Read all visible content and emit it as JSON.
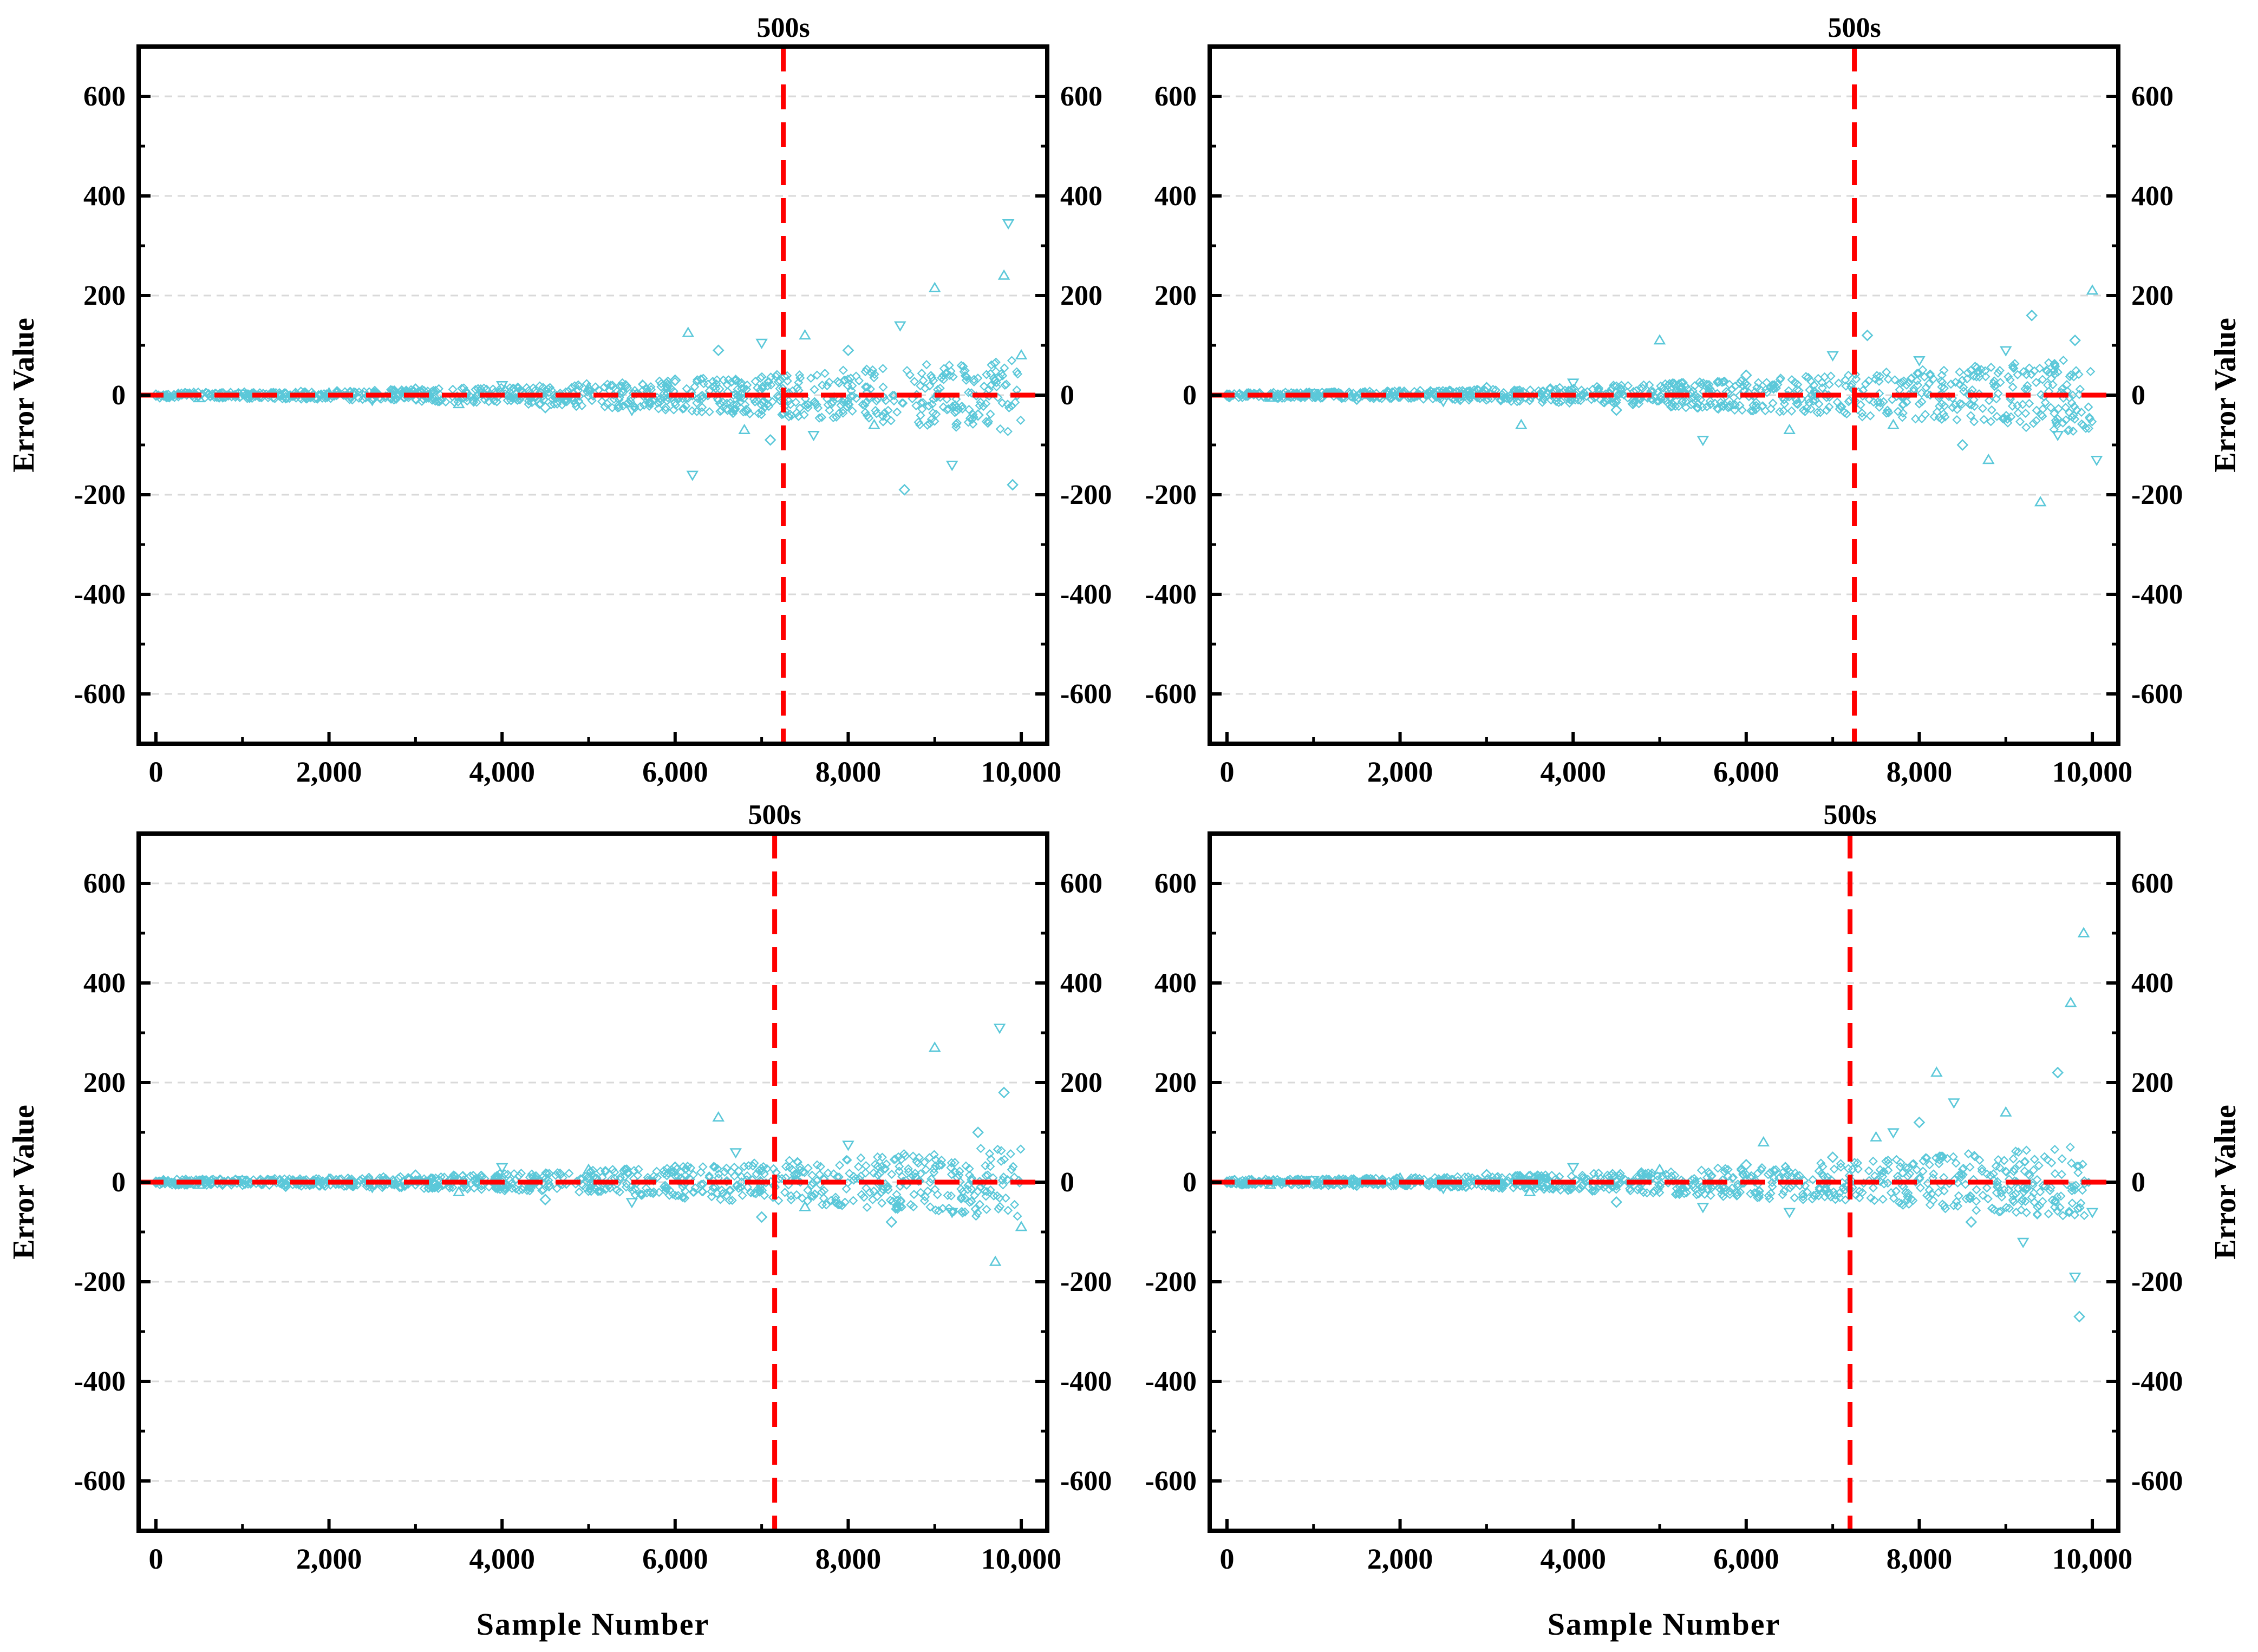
{
  "figure": {
    "xlabel": "Sample Number",
    "ylabel": "Error Value",
    "colors": {
      "points": "#5bc8d9",
      "reference": "#ff0000",
      "grid": "#d9d9d9",
      "axes": "#000000"
    }
  },
  "chart_data": [
    {
      "type": "scatter",
      "panel": "top-left",
      "marker": "500s",
      "marker_x": 7250,
      "xlim": [
        -200,
        10300
      ],
      "ylim": [
        -700,
        700
      ],
      "xticks": [
        0,
        2000,
        4000,
        6000,
        8000,
        10000
      ],
      "xticklabels": [
        "0",
        "2,000",
        "4,000",
        "6,000",
        "8,000",
        "10,000"
      ],
      "yticks": [
        -600,
        -400,
        -200,
        0,
        200,
        400,
        600
      ],
      "yticklabels": [
        "-600",
        "-400",
        "-200",
        "0",
        "200",
        "400",
        "600"
      ],
      "right_yticklabels": [
        "-600",
        "-400",
        "-200",
        "0",
        "200",
        "400",
        "600"
      ],
      "xlabel": "",
      "ylabel_left": "Error Value",
      "ylabel_right": "",
      "grid": true,
      "reference_y": 0,
      "series": [
        {
          "points": [
            [
              0,
              0
            ],
            [
              500,
              -6
            ],
            [
              1000,
              3
            ],
            [
              1500,
              -5
            ],
            [
              2000,
              4
            ],
            [
              2500,
              -10
            ],
            [
              3000,
              12
            ],
            [
              3500,
              -18
            ],
            [
              4000,
              20
            ],
            [
              4500,
              -25
            ],
            [
              5000,
              15
            ],
            [
              5500,
              -30
            ],
            [
              6000,
              30
            ],
            [
              6150,
              125
            ],
            [
              6200,
              -160
            ],
            [
              6500,
              90
            ],
            [
              6800,
              -70
            ],
            [
              7000,
              105
            ],
            [
              7100,
              -90
            ],
            [
              7500,
              120
            ],
            [
              7600,
              -80
            ],
            [
              8000,
              90
            ],
            [
              8300,
              -60
            ],
            [
              8600,
              140
            ],
            [
              8650,
              -190
            ],
            [
              9000,
              215
            ],
            [
              9200,
              -140
            ],
            [
              9500,
              -40
            ],
            [
              9800,
              240
            ],
            [
              9850,
              345
            ],
            [
              9900,
              -180
            ],
            [
              10000,
              80
            ]
          ]
        }
      ]
    },
    {
      "type": "scatter",
      "panel": "top-right",
      "marker": "500s",
      "marker_x": 7250,
      "xlim": [
        -200,
        10300
      ],
      "ylim": [
        -700,
        700
      ],
      "xticks": [
        0,
        2000,
        4000,
        6000,
        8000,
        10000
      ],
      "xticklabels": [
        "0",
        "2,000",
        "4,000",
        "6,000",
        "8,000",
        "10,000"
      ],
      "yticks": [
        -600,
        -400,
        -200,
        0,
        200,
        400,
        600
      ],
      "yticklabels": [
        "-600",
        "-400",
        "-200",
        "0",
        "200",
        "400",
        "600"
      ],
      "right_yticklabels": [
        "-600",
        "-400",
        "-200",
        "0",
        "200",
        "400",
        "600"
      ],
      "xlabel": "",
      "ylabel_left": "",
      "ylabel_right": "Error Value",
      "grid": true,
      "reference_y": 0,
      "series": [
        {
          "points": [
            [
              0,
              0
            ],
            [
              500,
              -5
            ],
            [
              1000,
              4
            ],
            [
              1500,
              -8
            ],
            [
              2000,
              6
            ],
            [
              2500,
              -12
            ],
            [
              3000,
              15
            ],
            [
              3400,
              -60
            ],
            [
              4000,
              25
            ],
            [
              4500,
              -30
            ],
            [
              5000,
              110
            ],
            [
              5500,
              -90
            ],
            [
              6000,
              40
            ],
            [
              6500,
              -70
            ],
            [
              7000,
              80
            ],
            [
              7400,
              120
            ],
            [
              7700,
              -60
            ],
            [
              8000,
              70
            ],
            [
              8500,
              -100
            ],
            [
              8800,
              -130
            ],
            [
              9000,
              90
            ],
            [
              9300,
              160
            ],
            [
              9400,
              -215
            ],
            [
              9600,
              -80
            ],
            [
              9800,
              110
            ],
            [
              10000,
              210
            ],
            [
              10050,
              -130
            ]
          ]
        }
      ]
    },
    {
      "type": "scatter",
      "panel": "bottom-left",
      "marker": "500s",
      "marker_x": 7150,
      "xlim": [
        -200,
        10300
      ],
      "ylim": [
        -700,
        700
      ],
      "xticks": [
        0,
        2000,
        4000,
        6000,
        8000,
        10000
      ],
      "xticklabels": [
        "0",
        "2,000",
        "4,000",
        "6,000",
        "8,000",
        "10,000"
      ],
      "yticks": [
        -600,
        -400,
        -200,
        0,
        200,
        400,
        600
      ],
      "yticklabels": [
        "-600",
        "-400",
        "-200",
        "0",
        "200",
        "400",
        "600"
      ],
      "right_yticklabels": [
        "-600",
        "-400",
        "-200",
        "0",
        "200",
        "400",
        "600"
      ],
      "xlabel": "Sample Number",
      "ylabel_left": "Error Value",
      "ylabel_right": "",
      "grid": true,
      "reference_y": 0,
      "series": [
        {
          "points": [
            [
              0,
              0
            ],
            [
              500,
              -5
            ],
            [
              1000,
              4
            ],
            [
              1500,
              -8
            ],
            [
              2000,
              6
            ],
            [
              2500,
              -10
            ],
            [
              3000,
              14
            ],
            [
              3500,
              -20
            ],
            [
              4000,
              30
            ],
            [
              4500,
              -35
            ],
            [
              5000,
              25
            ],
            [
              5500,
              -40
            ],
            [
              6000,
              30
            ],
            [
              6500,
              130
            ],
            [
              6700,
              60
            ],
            [
              7000,
              -70
            ],
            [
              7500,
              -50
            ],
            [
              8000,
              75
            ],
            [
              8500,
              -80
            ],
            [
              9000,
              270
            ],
            [
              9200,
              -60
            ],
            [
              9500,
              100
            ],
            [
              9700,
              -160
            ],
            [
              9750,
              310
            ],
            [
              9800,
              180
            ],
            [
              10000,
              -90
            ]
          ]
        }
      ]
    },
    {
      "type": "scatter",
      "panel": "bottom-right",
      "marker": "500s",
      "marker_x": 7200,
      "xlim": [
        -200,
        10300
      ],
      "ylim": [
        -700,
        700
      ],
      "xticks": [
        0,
        2000,
        4000,
        6000,
        8000,
        10000
      ],
      "xticklabels": [
        "0",
        "2,000",
        "4,000",
        "6,000",
        "8,000",
        "10,000"
      ],
      "yticks": [
        -600,
        -400,
        -200,
        0,
        200,
        400,
        600
      ],
      "yticklabels": [
        "-600",
        "-400",
        "-200",
        "0",
        "200",
        "400",
        "600"
      ],
      "right_yticklabels": [
        "-600",
        "-400",
        "-200",
        "0",
        "200",
        "400",
        "600"
      ],
      "xlabel": "Sample Number",
      "ylabel_left": "",
      "ylabel_right": "Error Value",
      "grid": true,
      "reference_y": 0,
      "series": [
        {
          "points": [
            [
              0,
              0
            ],
            [
              500,
              -5
            ],
            [
              1000,
              4
            ],
            [
              1500,
              -6
            ],
            [
              2000,
              8
            ],
            [
              2500,
              -12
            ],
            [
              3000,
              15
            ],
            [
              3500,
              -20
            ],
            [
              4000,
              30
            ],
            [
              4500,
              -40
            ],
            [
              5000,
              25
            ],
            [
              5500,
              -50
            ],
            [
              6000,
              35
            ],
            [
              6200,
              80
            ],
            [
              6500,
              -60
            ],
            [
              7000,
              50
            ],
            [
              7500,
              90
            ],
            [
              7700,
              100
            ],
            [
              8000,
              120
            ],
            [
              8200,
              220
            ],
            [
              8400,
              160
            ],
            [
              8600,
              -80
            ],
            [
              9000,
              140
            ],
            [
              9200,
              -120
            ],
            [
              9600,
              220
            ],
            [
              9750,
              360
            ],
            [
              9800,
              -190
            ],
            [
              9850,
              -270
            ],
            [
              9900,
              500
            ],
            [
              10000,
              -60
            ]
          ]
        }
      ]
    }
  ]
}
